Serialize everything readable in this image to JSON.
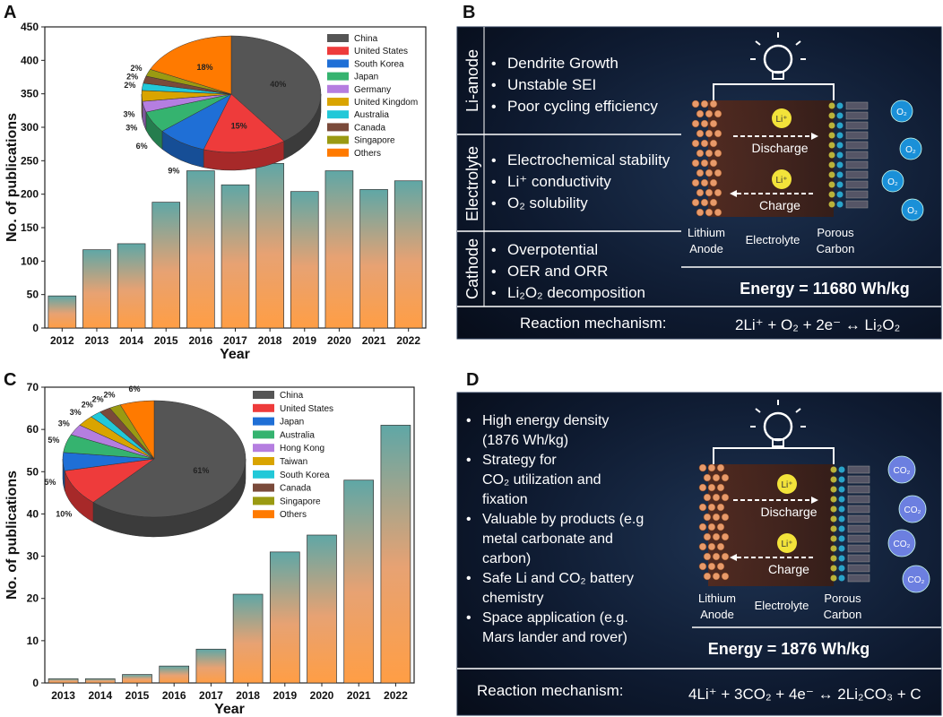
{
  "panels": {
    "a_letter": "A",
    "b_letter": "B",
    "c_letter": "C",
    "d_letter": "D"
  },
  "chart_data": [
    {
      "type": "bar",
      "panel": "A",
      "categories": [
        "2012",
        "2013",
        "2014",
        "2015",
        "2016",
        "2017",
        "2018",
        "2019",
        "2020",
        "2021",
        "2022"
      ],
      "values": [
        48,
        117,
        126,
        188,
        235,
        214,
        246,
        204,
        235,
        207,
        220
      ],
      "xlabel": "Year",
      "ylabel": "No. of publications",
      "ylim": [
        0,
        450
      ],
      "yticks": [
        0,
        50,
        100,
        150,
        200,
        250,
        300,
        350,
        400,
        450
      ],
      "inset_pie": {
        "type": "pie",
        "legend": [
          "China",
          "United States",
          "South Korea",
          "Japan",
          "Germany",
          "United Kingdom",
          "Australia",
          "Canada",
          "Singapore",
          "Others"
        ],
        "values": [
          40,
          15,
          9,
          6,
          3,
          3,
          2,
          2,
          2,
          18
        ],
        "labels": [
          "40%",
          "15%",
          "9%",
          "6%",
          "3%",
          "3%",
          "2%",
          "2%",
          "2%",
          "18%"
        ],
        "colors": [
          "#555555",
          "#ee3b3b",
          "#1f6fd6",
          "#35b36f",
          "#b57ee0",
          "#d9a400",
          "#22c8d8",
          "#7a4a3a",
          "#9a9a12",
          "#ff7a00"
        ]
      }
    },
    {
      "type": "bar",
      "panel": "C",
      "categories": [
        "2013",
        "2014",
        "2015",
        "2016",
        "2017",
        "2018",
        "2019",
        "2020",
        "2021",
        "2022"
      ],
      "values": [
        1,
        1,
        2,
        4,
        8,
        21,
        31,
        35,
        48,
        61
      ],
      "xlabel": "Year",
      "ylabel": "No. of publications",
      "ylim": [
        0,
        70
      ],
      "yticks": [
        0,
        10,
        20,
        30,
        40,
        50,
        60,
        70
      ],
      "inset_pie": {
        "type": "pie",
        "legend": [
          "China",
          "United States",
          "Japan",
          "Australia",
          "Hong Kong",
          "Taiwan",
          "South Korea",
          "Canada",
          "Singapore",
          "Others"
        ],
        "values": [
          61,
          10,
          5,
          5,
          3,
          3,
          2,
          2,
          2,
          6
        ],
        "labels": [
          "61%",
          "10%",
          "5%",
          "5%",
          "3%",
          "3%",
          "2%",
          "2%",
          "2%",
          "6%"
        ],
        "colors": [
          "#555555",
          "#ee3b3b",
          "#1f6fd6",
          "#35b36f",
          "#b57ee0",
          "#d9a400",
          "#22c8d8",
          "#7a4a3a",
          "#9a9a12",
          "#ff7a00"
        ]
      }
    }
  ],
  "panel_b": {
    "sections": [
      {
        "heading": "Li-anode",
        "bullets": [
          "Dendrite Growth",
          "Unstable SEI",
          "Poor cycling efficiency"
        ]
      },
      {
        "heading": "Electrolyte",
        "bullets": [
          "Electrochemical stability",
          "Li⁺ conductivity",
          "O₂ solubility"
        ]
      },
      {
        "heading": "Cathode",
        "bullets": [
          "Overpotential",
          "OER and ORR",
          "Li₂O₂ decomposition"
        ]
      }
    ],
    "ion": "Li⁺",
    "discharge": "Discharge",
    "charge": "Charge",
    "gas": "O₂",
    "anode_label": [
      "Lithium",
      "Anode"
    ],
    "electrolyte_label": "Electrolyte",
    "cathode_label": [
      "Porous",
      "Carbon"
    ],
    "energy": "Energy = 11680 Wh/kg",
    "mechanism_label": "Reaction mechanism:",
    "mechanism_eq": "2Li⁺ + O₂ + 2e⁻ ↔ Li₂O₂"
  },
  "panel_d": {
    "bullets": [
      [
        "High energy density",
        "(1876 Wh/kg)"
      ],
      [
        "Strategy for",
        "CO₂  utilization and",
        "fixation"
      ],
      [
        "Valuable by products (e.g",
        "metal carbonate and",
        "carbon)"
      ],
      [
        "Safe Li and CO₂ battery",
        "chemistry"
      ],
      [
        "Space application (e.g.",
        "Mars lander and rover)"
      ]
    ],
    "ion": "Li⁺",
    "discharge": "Discharge",
    "charge": "Charge",
    "gas": "CO₂",
    "anode_label": [
      "Lithium",
      "Anode"
    ],
    "electrolyte_label": "Electrolyte",
    "cathode_label": [
      "Porous",
      "Carbon"
    ],
    "energy": "Energy = 1876 Wh/kg",
    "mechanism_label": "Reaction mechanism:",
    "mechanism_eq": "4Li⁺ + 3CO₂ + 4e⁻ ↔ 2Li₂CO₃ + C"
  }
}
